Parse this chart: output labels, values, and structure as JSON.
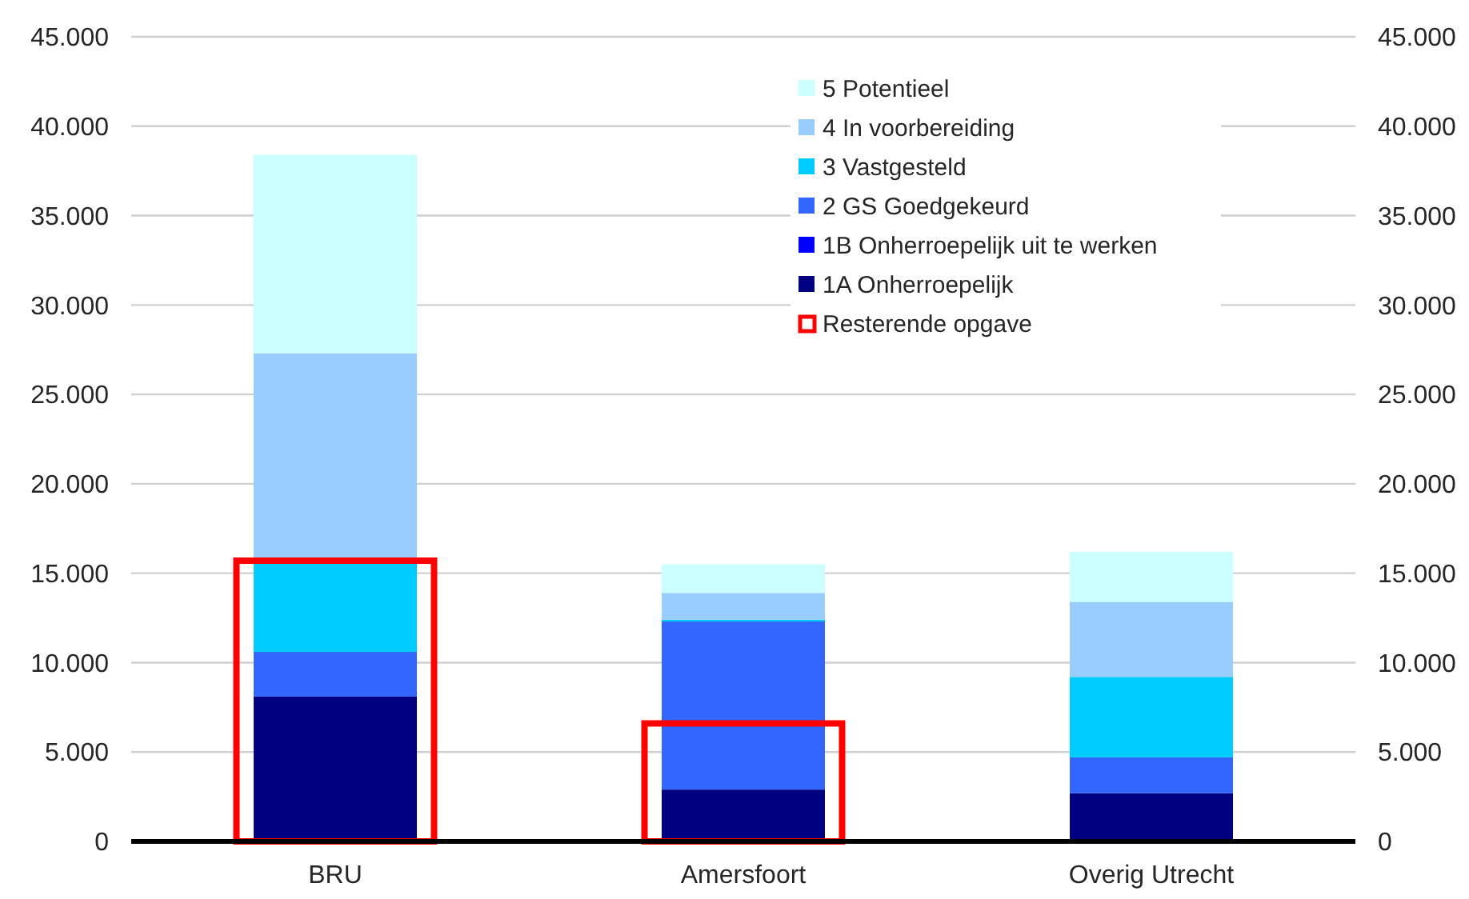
{
  "chart_data": {
    "type": "bar",
    "stacked": true,
    "categories": [
      "BRU",
      "Amersfoort",
      "Overig Utrecht"
    ],
    "series": [
      {
        "name": "1A Onherroepelijk",
        "color": "#000080",
        "values": [
          8100,
          2900,
          2700
        ]
      },
      {
        "name": "1B Onherroepelijk uit te werken",
        "color": "#0000ff",
        "values": [
          0,
          0,
          0
        ]
      },
      {
        "name": "2 GS Goedgekeurd",
        "color": "#3366ff",
        "values": [
          2500,
          9400,
          2000
        ]
      },
      {
        "name": "3 Vastgesteld",
        "color": "#00ccff",
        "values": [
          5000,
          100,
          4500
        ]
      },
      {
        "name": "4 In voorbereiding",
        "color": "#99ccff",
        "values": [
          11700,
          1500,
          4200
        ]
      },
      {
        "name": "5 Potentieel",
        "color": "#ccffff",
        "values": [
          11100,
          1600,
          2800
        ]
      },
      {
        "name": "Resterende opgave",
        "color": "#ff0000",
        "axis": "y2",
        "values": [
          15700,
          6600,
          null
        ]
      }
    ],
    "ylim": [
      0,
      45000
    ],
    "yticks": [
      0,
      {
        "value": 5000,
        "label": "5.000"
      },
      {
        "value": 10000,
        "label": "10.000"
      },
      {
        "value": 15000,
        "label": "15.000"
      },
      {
        "value": 20000,
        "label": "20.000"
      },
      {
        "value": 25000,
        "label": "25.000"
      },
      {
        "value": 30000,
        "label": "30.000"
      },
      {
        "value": 35000,
        "label": "35.000"
      },
      {
        "value": 40000,
        "label": "40.000"
      },
      {
        "value": 45000,
        "label": "45.000"
      }
    ],
    "y2lim": [
      0,
      45000
    ],
    "y2ticks": [
      0,
      {
        "value": 5000,
        "label": "5.000"
      },
      {
        "value": 10000,
        "label": "10.000"
      },
      {
        "value": 15000,
        "label": "15.000"
      },
      {
        "value": 20000,
        "label": "20.000"
      },
      {
        "value": 25000,
        "label": "25.000"
      },
      {
        "value": 30000,
        "label": "30.000"
      },
      {
        "value": 35000,
        "label": "35.000"
      },
      {
        "value": 40000,
        "label": "40.000"
      },
      {
        "value": 45000,
        "label": "45.000"
      }
    ],
    "grid": "y",
    "legend": "top right"
  }
}
